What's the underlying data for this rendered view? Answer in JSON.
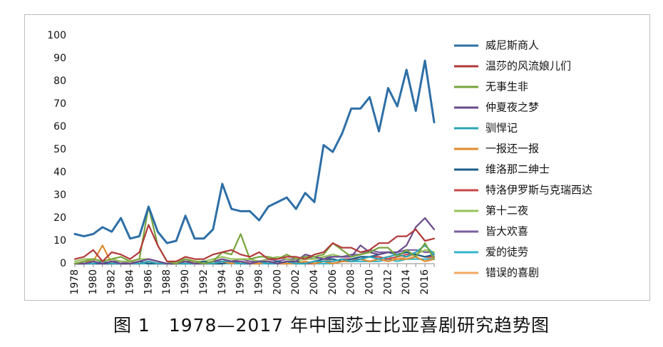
{
  "figure": {
    "label": "图 1",
    "title": "1978—2017 年中国莎士比亚喜剧研究趋势图"
  },
  "chart_data": {
    "type": "line",
    "title": "1978—2017 年中国莎士比亚喜剧研究趋势图",
    "xlabel": "",
    "ylabel": "",
    "ylim": [
      0,
      100
    ],
    "yticks": [
      0,
      10,
      20,
      30,
      40,
      50,
      60,
      70,
      80,
      90,
      100
    ],
    "x": [
      1978,
      1979,
      1980,
      1981,
      1982,
      1983,
      1984,
      1985,
      1986,
      1987,
      1988,
      1989,
      1990,
      1991,
      1992,
      1993,
      1994,
      1995,
      1996,
      1997,
      1998,
      1999,
      2000,
      2001,
      2002,
      2003,
      2004,
      2005,
      2006,
      2007,
      2008,
      2009,
      2010,
      2011,
      2012,
      2013,
      2014,
      2015,
      2016,
      2017
    ],
    "xtick_labels": [
      "1978",
      "1980",
      "1982",
      "1984",
      "1986",
      "1988",
      "1990",
      "1992",
      "1994",
      "1996",
      "1998",
      "2000",
      "2002",
      "2004",
      "2006",
      "2008",
      "2010",
      "2012",
      "2014",
      "2016"
    ],
    "grid": false,
    "legend_position": "right",
    "series": [
      {
        "name": "威尼斯商人",
        "color": "#2e6fa6",
        "values": [
          13,
          12,
          13,
          16,
          14,
          20,
          11,
          12,
          25,
          14,
          9,
          10,
          21,
          11,
          11,
          15,
          35,
          24,
          23,
          23,
          19,
          25,
          27,
          29,
          24,
          31,
          27,
          52,
          49,
          57,
          68,
          68,
          73,
          58,
          77,
          69,
          85,
          67,
          89,
          62
        ]
      },
      {
        "name": "温莎的风流娘儿们",
        "color": "#b23a3a",
        "values": [
          2,
          3,
          6,
          1,
          5,
          4,
          2,
          5,
          17,
          8,
          1,
          1,
          3,
          2,
          2,
          4,
          5,
          6,
          4,
          3,
          5,
          2,
          2,
          3,
          3,
          2,
          4,
          5,
          9,
          7,
          7,
          5,
          6,
          9,
          9,
          12,
          12,
          15,
          10,
          11
        ]
      },
      {
        "name": "无事生非",
        "color": "#77a43c",
        "values": [
          0,
          1,
          2,
          1,
          2,
          3,
          1,
          2,
          25,
          8,
          1,
          0,
          2,
          1,
          0,
          1,
          5,
          4,
          13,
          2,
          3,
          3,
          2,
          4,
          2,
          3,
          3,
          4,
          9,
          6,
          3,
          4,
          5,
          7,
          7,
          3,
          6,
          3,
          9,
          2
        ]
      },
      {
        "name": "仲夏夜之梦",
        "color": "#6b4a8c",
        "values": [
          0,
          0,
          1,
          0,
          1,
          0,
          0,
          1,
          2,
          1,
          0,
          0,
          1,
          0,
          0,
          1,
          2,
          1,
          1,
          0,
          1,
          1,
          0,
          1,
          1,
          4,
          3,
          2,
          3,
          3,
          3,
          8,
          5,
          4,
          5,
          5,
          8,
          16,
          20,
          15
        ]
      },
      {
        "name": "驯悍记",
        "color": "#2aa3b8",
        "values": [
          0,
          0,
          0,
          1,
          0,
          0,
          0,
          0,
          1,
          0,
          0,
          0,
          0,
          0,
          0,
          0,
          1,
          1,
          0,
          0,
          1,
          0,
          0,
          1,
          0,
          0,
          1,
          1,
          1,
          2,
          1,
          2,
          3,
          2,
          3,
          4,
          3,
          5,
          8,
          4
        ]
      },
      {
        "name": "一报还一报",
        "color": "#e08a2e",
        "values": [
          0,
          1,
          1,
          8,
          0,
          0,
          0,
          0,
          1,
          0,
          0,
          0,
          0,
          1,
          0,
          0,
          1,
          0,
          1,
          0,
          0,
          1,
          0,
          0,
          0,
          1,
          0,
          1,
          0,
          1,
          1,
          2,
          1,
          2,
          1,
          2,
          2,
          3,
          1,
          2
        ]
      },
      {
        "name": "维洛那二绅士",
        "color": "#1f5f8c",
        "values": [
          0,
          0,
          0,
          0,
          0,
          0,
          0,
          1,
          0,
          0,
          0,
          0,
          0,
          0,
          1,
          0,
          0,
          1,
          0,
          0,
          1,
          0,
          1,
          0,
          1,
          0,
          1,
          2,
          2,
          1,
          2,
          3,
          3,
          4,
          5,
          4,
          5,
          4,
          3,
          4
        ]
      },
      {
        "name": "特洛伊罗斯与克瑞西达",
        "color": "#c94848",
        "values": [
          0,
          0,
          0,
          0,
          0,
          0,
          0,
          0,
          1,
          0,
          0,
          0,
          1,
          0,
          0,
          0,
          0,
          1,
          0,
          0,
          0,
          1,
          0,
          0,
          1,
          0,
          0,
          1,
          1,
          2,
          2,
          2,
          3,
          3,
          2,
          3,
          4,
          4,
          3,
          3
        ]
      },
      {
        "name": "第十二夜",
        "color": "#96c35a",
        "values": [
          1,
          2,
          2,
          1,
          2,
          1,
          1,
          2,
          2,
          1,
          0,
          1,
          2,
          1,
          1,
          2,
          3,
          2,
          2,
          2,
          1,
          2,
          3,
          2,
          1,
          2,
          2,
          3,
          4,
          3,
          3,
          4,
          5,
          4,
          5,
          4,
          5,
          4,
          6,
          5
        ]
      },
      {
        "name": "皆大欢喜",
        "color": "#7d5fa3",
        "values": [
          0,
          1,
          1,
          0,
          1,
          1,
          0,
          1,
          2,
          1,
          0,
          1,
          1,
          1,
          0,
          1,
          1,
          1,
          2,
          1,
          1,
          2,
          1,
          2,
          2,
          3,
          2,
          3,
          3,
          3,
          4,
          4,
          6,
          5,
          5,
          5,
          6,
          6,
          5,
          5
        ]
      },
      {
        "name": "爱的徒劳",
        "color": "#38b5cc",
        "values": [
          0,
          0,
          0,
          0,
          0,
          0,
          0,
          0,
          0,
          0,
          0,
          0,
          0,
          0,
          0,
          0,
          0,
          0,
          0,
          0,
          0,
          0,
          0,
          0,
          0,
          0,
          0,
          0,
          0,
          1,
          1,
          1,
          1,
          1,
          2,
          1,
          2,
          2,
          2,
          2
        ]
      },
      {
        "name": "错误的喜剧",
        "color": "#f0a862",
        "values": [
          0,
          0,
          1,
          0,
          0,
          0,
          1,
          0,
          1,
          0,
          0,
          0,
          1,
          0,
          0,
          1,
          0,
          1,
          0,
          1,
          0,
          0,
          1,
          0,
          1,
          0,
          1,
          1,
          2,
          1,
          2,
          2,
          3,
          2,
          3,
          2,
          3,
          4,
          3,
          2
        ]
      }
    ]
  }
}
